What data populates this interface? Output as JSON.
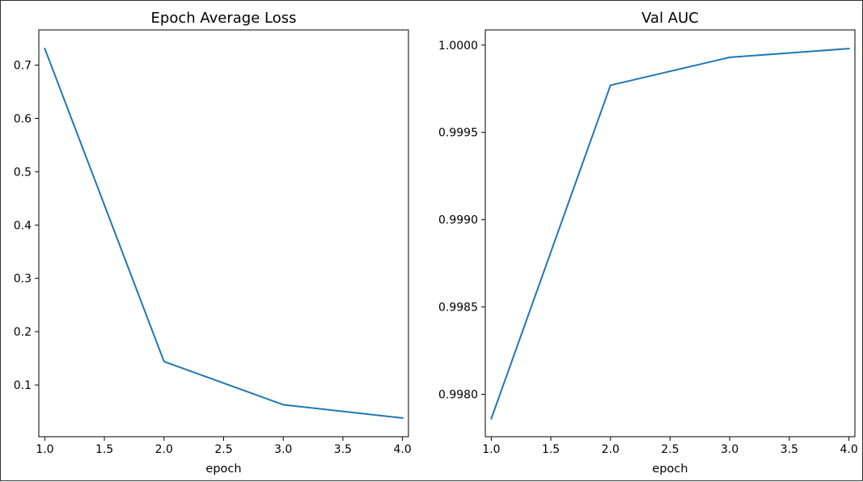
{
  "colors": {
    "line": "#1f77b4",
    "axis": "#000000",
    "background": "#ffffff"
  },
  "chart_data": [
    {
      "type": "line",
      "title": "Epoch Average Loss",
      "xlabel": "epoch",
      "ylabel": "",
      "x": [
        1.0,
        2.0,
        3.0,
        4.0
      ],
      "series": [
        {
          "values": [
            0.731,
            0.144,
            0.063,
            0.038
          ]
        }
      ],
      "xlim": [
        0.95,
        4.05
      ],
      "ylim": [
        0.003,
        0.766
      ],
      "xticks": [
        1.0,
        1.5,
        2.0,
        2.5,
        3.0,
        3.5,
        4.0
      ],
      "xtick_labels": [
        "1.0",
        "1.5",
        "2.0",
        "2.5",
        "3.0",
        "3.5",
        "4.0"
      ],
      "yticks": [
        0.1,
        0.2,
        0.3,
        0.4,
        0.5,
        0.6,
        0.7
      ],
      "ytick_labels": [
        "0.1",
        "0.2",
        "0.3",
        "0.4",
        "0.5",
        "0.6",
        "0.7"
      ],
      "grid": false,
      "legend": "none"
    },
    {
      "type": "line",
      "title": "Val AUC",
      "xlabel": "epoch",
      "ylabel": "",
      "x": [
        1.0,
        2.0,
        3.0,
        4.0
      ],
      "series": [
        {
          "values": [
            0.99786,
            0.99977,
            0.99993,
            0.99998
          ]
        }
      ],
      "xlim": [
        0.95,
        4.05
      ],
      "ylim": [
        0.997757,
        1.000087
      ],
      "xticks": [
        1.0,
        1.5,
        2.0,
        2.5,
        3.0,
        3.5,
        4.0
      ],
      "xtick_labels": [
        "1.0",
        "1.5",
        "2.0",
        "2.5",
        "3.0",
        "3.5",
        "4.0"
      ],
      "yticks": [
        0.998,
        0.9985,
        0.999,
        0.9995,
        1.0
      ],
      "ytick_labels": [
        "0.9980",
        "0.9985",
        "0.9990",
        "0.9995",
        "1.0000"
      ],
      "grid": false,
      "legend": "none"
    }
  ]
}
